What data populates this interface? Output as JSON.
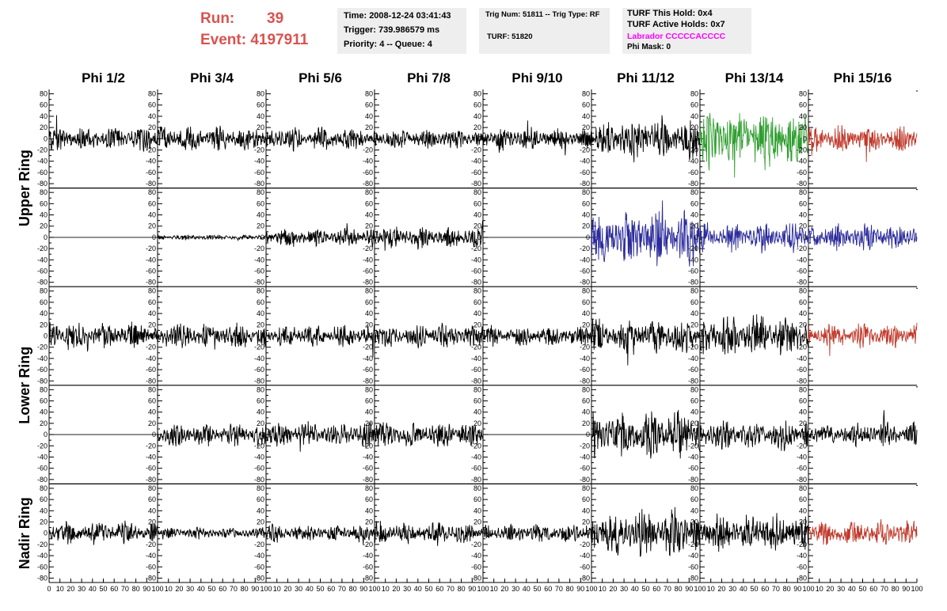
{
  "header": {
    "run_label": "Run:",
    "run_value": "39",
    "event_label": "Event:",
    "event_value": "4197911",
    "box1": {
      "time": "Time: 2008-12-24 03:41:43",
      "trigger": "Trigger: 739.986579 ms",
      "priority": "Priority: 4 -- Queue: 4"
    },
    "box2": {
      "trig": "Trig Num: 51811 -- Trig Type: RF",
      "turf": "TURF: 51820"
    },
    "box3": {
      "this_hold": "TURF This Hold: 0x4",
      "active_holds": "TURF Active Holds: 0x7",
      "labrador": "Labrador CCCCCACCCC",
      "phi_mask": "Phi Mask: 0"
    }
  },
  "colors": {
    "header_red": "#d9534f",
    "labrador_magenta": "#ff00ff",
    "trace_black": "#000000",
    "trace_green": "#2e9e2e",
    "trace_blue": "#2b2b9c",
    "trace_red": "#c0392b"
  },
  "chart_data": {
    "type": "line",
    "columns": [
      "Phi 1/2",
      "Phi 3/4",
      "Phi 5/6",
      "Phi 7/8",
      "Phi 9/10",
      "Phi 11/12",
      "Phi 13/14",
      "Phi 15/16"
    ],
    "row_labels": [
      {
        "label": "Upper Ring",
        "spans_rows": [
          0,
          1
        ]
      },
      {
        "label": "Lower Ring",
        "spans_rows": [
          2,
          3
        ]
      },
      {
        "label": "Nadir Ring",
        "spans_rows": [
          4,
          4
        ]
      }
    ],
    "ylim": [
      -85,
      85
    ],
    "yticks": [
      -80,
      -60,
      -40,
      -20,
      0,
      20,
      40,
      60,
      80
    ],
    "xlim": [
      0,
      100
    ],
    "xticks": [
      0,
      10,
      20,
      30,
      40,
      50,
      60,
      70,
      80,
      90,
      100
    ],
    "panels": [
      [
        {
          "color": "black",
          "amplitude": 13
        },
        {
          "color": "black",
          "amplitude": 13
        },
        {
          "color": "black",
          "amplitude": 12
        },
        {
          "color": "black",
          "amplitude": 10
        },
        {
          "color": "black",
          "amplitude": 12
        },
        {
          "color": "black",
          "amplitude": 22
        },
        {
          "color": "green",
          "amplitude": 30
        },
        {
          "color": "red",
          "amplitude": 14
        }
      ],
      [
        {
          "color": "black",
          "amplitude": 0
        },
        {
          "color": "black",
          "amplitude": 3
        },
        {
          "color": "black",
          "amplitude": 10
        },
        {
          "color": "black",
          "amplitude": 12
        },
        {
          "color": "black",
          "amplitude": 0
        },
        {
          "color": "blue",
          "amplitude": 28
        },
        {
          "color": "blue",
          "amplitude": 15
        },
        {
          "color": "blue",
          "amplitude": 14
        }
      ],
      [
        {
          "color": "black",
          "amplitude": 14
        },
        {
          "color": "black",
          "amplitude": 13
        },
        {
          "color": "black",
          "amplitude": 12
        },
        {
          "color": "black",
          "amplitude": 12
        },
        {
          "color": "black",
          "amplitude": 11
        },
        {
          "color": "black",
          "amplitude": 18
        },
        {
          "color": "black",
          "amplitude": 22
        },
        {
          "color": "red",
          "amplitude": 13
        }
      ],
      [
        {
          "color": "black",
          "amplitude": 0
        },
        {
          "color": "black",
          "amplitude": 12
        },
        {
          "color": "black",
          "amplitude": 13
        },
        {
          "color": "black",
          "amplitude": 13
        },
        {
          "color": "black",
          "amplitude": 0
        },
        {
          "color": "black",
          "amplitude": 25
        },
        {
          "color": "black",
          "amplitude": 16
        },
        {
          "color": "black",
          "amplitude": 13
        }
      ],
      [
        {
          "color": "black",
          "amplitude": 12
        },
        {
          "color": "black",
          "amplitude": 6
        },
        {
          "color": "black",
          "amplitude": 9
        },
        {
          "color": "black",
          "amplitude": 12
        },
        {
          "color": "black",
          "amplitude": 10
        },
        {
          "color": "black",
          "amplitude": 25
        },
        {
          "color": "black",
          "amplitude": 20
        },
        {
          "color": "red",
          "amplitude": 13
        }
      ]
    ]
  }
}
